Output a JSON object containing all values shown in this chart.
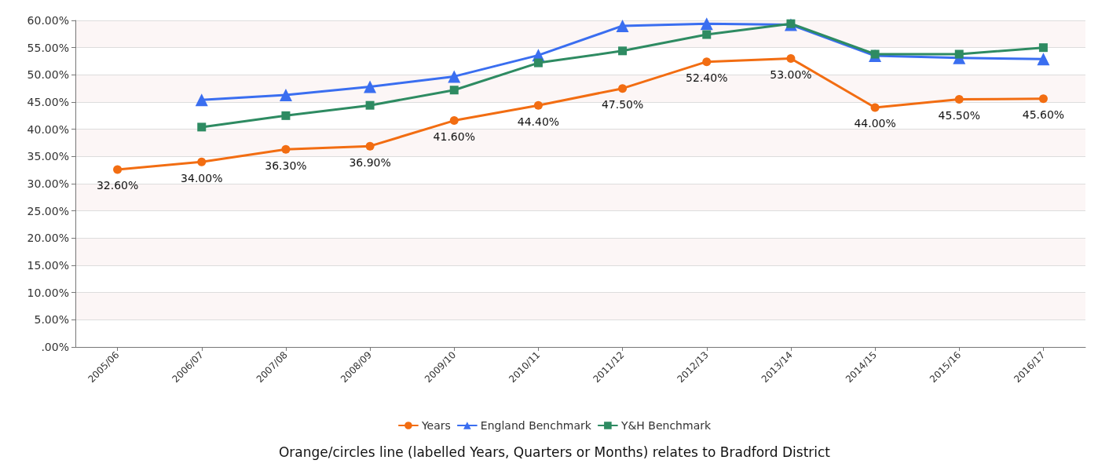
{
  "chart_data": {
    "type": "line",
    "categories": [
      "2005/06",
      "2006/07",
      "2007/08",
      "2008/09",
      "2009/10",
      "2010/11",
      "2011/12",
      "2012/13",
      "2013/14",
      "2014/15",
      "2015/16",
      "2016/17"
    ],
    "ylim": [
      0,
      60
    ],
    "yticks": [
      {
        "value": 0,
        "label": ".00%"
      },
      {
        "value": 5,
        "label": "5.00%"
      },
      {
        "value": 10,
        "label": "10.00%"
      },
      {
        "value": 15,
        "label": "15.00%"
      },
      {
        "value": 20,
        "label": "20.00%"
      },
      {
        "value": 25,
        "label": "25.00%"
      },
      {
        "value": 30,
        "label": "30.00%"
      },
      {
        "value": 35,
        "label": "35.00%"
      },
      {
        "value": 40,
        "label": "40.00%"
      },
      {
        "value": 45,
        "label": "45.00%"
      },
      {
        "value": 50,
        "label": "50.00%"
      },
      {
        "value": 55,
        "label": "55.00%"
      },
      {
        "value": 60,
        "label": "60.00%"
      }
    ],
    "grid": "y",
    "legend": "bottom",
    "line_style": "solid",
    "series": [
      {
        "name": "Years",
        "color": "#f26d12",
        "marker": "circle",
        "values": [
          32.6,
          34.0,
          36.3,
          36.9,
          41.6,
          44.4,
          47.5,
          52.4,
          53.0,
          44.0,
          45.5,
          45.6
        ],
        "value_labels": [
          "32.60%",
          "34.00%",
          "36.30%",
          "36.90%",
          "41.60%",
          "44.40%",
          "47.50%",
          "52.40%",
          "53.00%",
          "44.00%",
          "45.50%",
          "45.60%"
        ]
      },
      {
        "name": "England Benchmark",
        "color": "#3a6ef0",
        "marker": "triangle",
        "values": [
          null,
          45.4,
          46.3,
          47.8,
          49.7,
          53.6,
          59.0,
          59.4,
          59.2,
          53.5,
          53.1,
          52.9
        ]
      },
      {
        "name": "Y&H Benchmark",
        "color": "#2e8b62",
        "marker": "square",
        "values": [
          null,
          40.4,
          42.5,
          44.4,
          47.2,
          52.2,
          54.4,
          57.4,
          59.4,
          53.8,
          53.8,
          55.0
        ]
      }
    ],
    "annotations": [
      "Orange/circles line (labelled Years, Quarters or Months) relates to Bradford District"
    ]
  }
}
